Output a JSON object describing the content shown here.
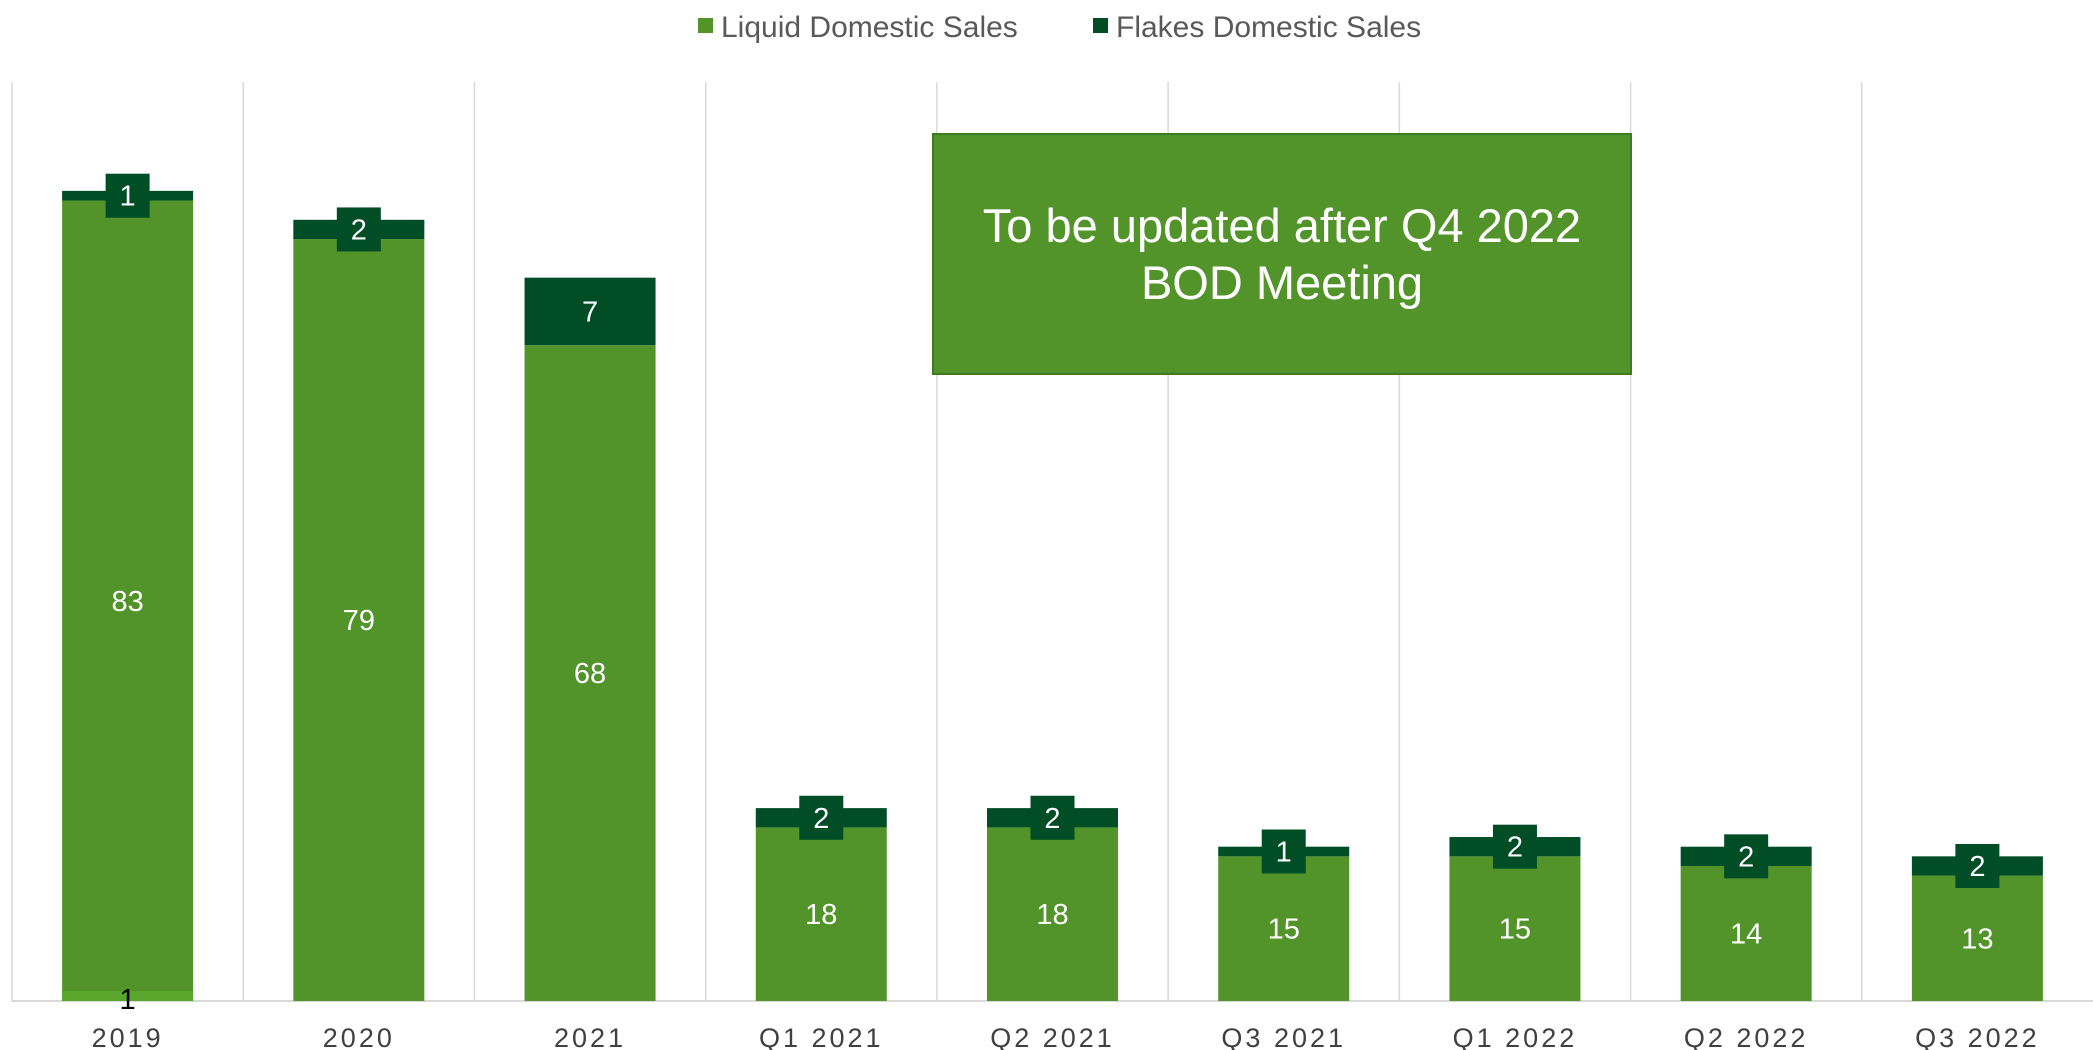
{
  "chart_data": {
    "type": "bar",
    "stacked": true,
    "categories": [
      "2019",
      "2020",
      "2021",
      "Q1 2021",
      "Q2 2021",
      "Q3 2021",
      "Q1 2022",
      "Q2 2022",
      "Q3 2022"
    ],
    "series": [
      {
        "name": "Liquid Domestic Sales",
        "color": "#52942a",
        "values": [
          83,
          79,
          68,
          18,
          18,
          15,
          15,
          14,
          13
        ]
      },
      {
        "name": "Flakes Domestic Sales",
        "color": "#004d26",
        "values": [
          1,
          2,
          7,
          2,
          2,
          1,
          2,
          2,
          2
        ]
      }
    ],
    "legend_position": "top-center",
    "grid": "vertical category separators",
    "ylim": [
      0,
      90
    ],
    "annotation": "To be updated after Q4 2022\nBOD Meeting",
    "extra_label": {
      "category": "2019",
      "value": "1"
    }
  }
}
